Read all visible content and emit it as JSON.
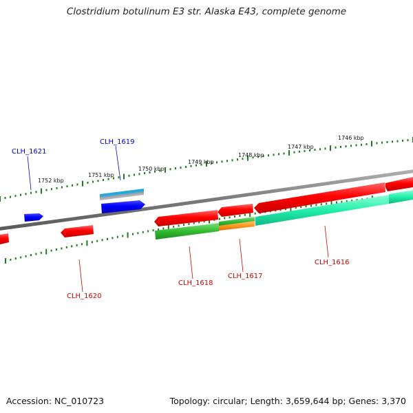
{
  "title": "Clostridium botulinum E3 str. Alaska E43, complete genome",
  "footer": {
    "accession": "Accession: NC_010723",
    "summary": "Topology: circular; Length: 3,659,644 bp; Genes: 3,370"
  },
  "kbp_labels": [
    "1752 kbp",
    "1751 kbp",
    "1750 kbp",
    "1749 kbp",
    "1748 kbp",
    "1747 kbp",
    "1746 kbp"
  ],
  "gene_labels": {
    "clh1621": "CLH_1621",
    "clh1619": "CLH_1619",
    "clh1620": "CLH_1620",
    "clh1618": "CLH_1618",
    "clh1617": "CLH_1617",
    "clh1616": "CLH_1616"
  },
  "colors": {
    "forward_strand_gene": "#0000ff",
    "reverse_strand_gene": "#ff0000",
    "forward_label": "#0000cc",
    "reverse_label": "#cc0000",
    "backbone": "#7a7a7a",
    "tick": "#1f7a1f",
    "cds_green": "#33bb33",
    "cds_orange": "#ff9922",
    "cds_teal": "#22eeaa",
    "cds_cyan": "#22aadd"
  }
}
